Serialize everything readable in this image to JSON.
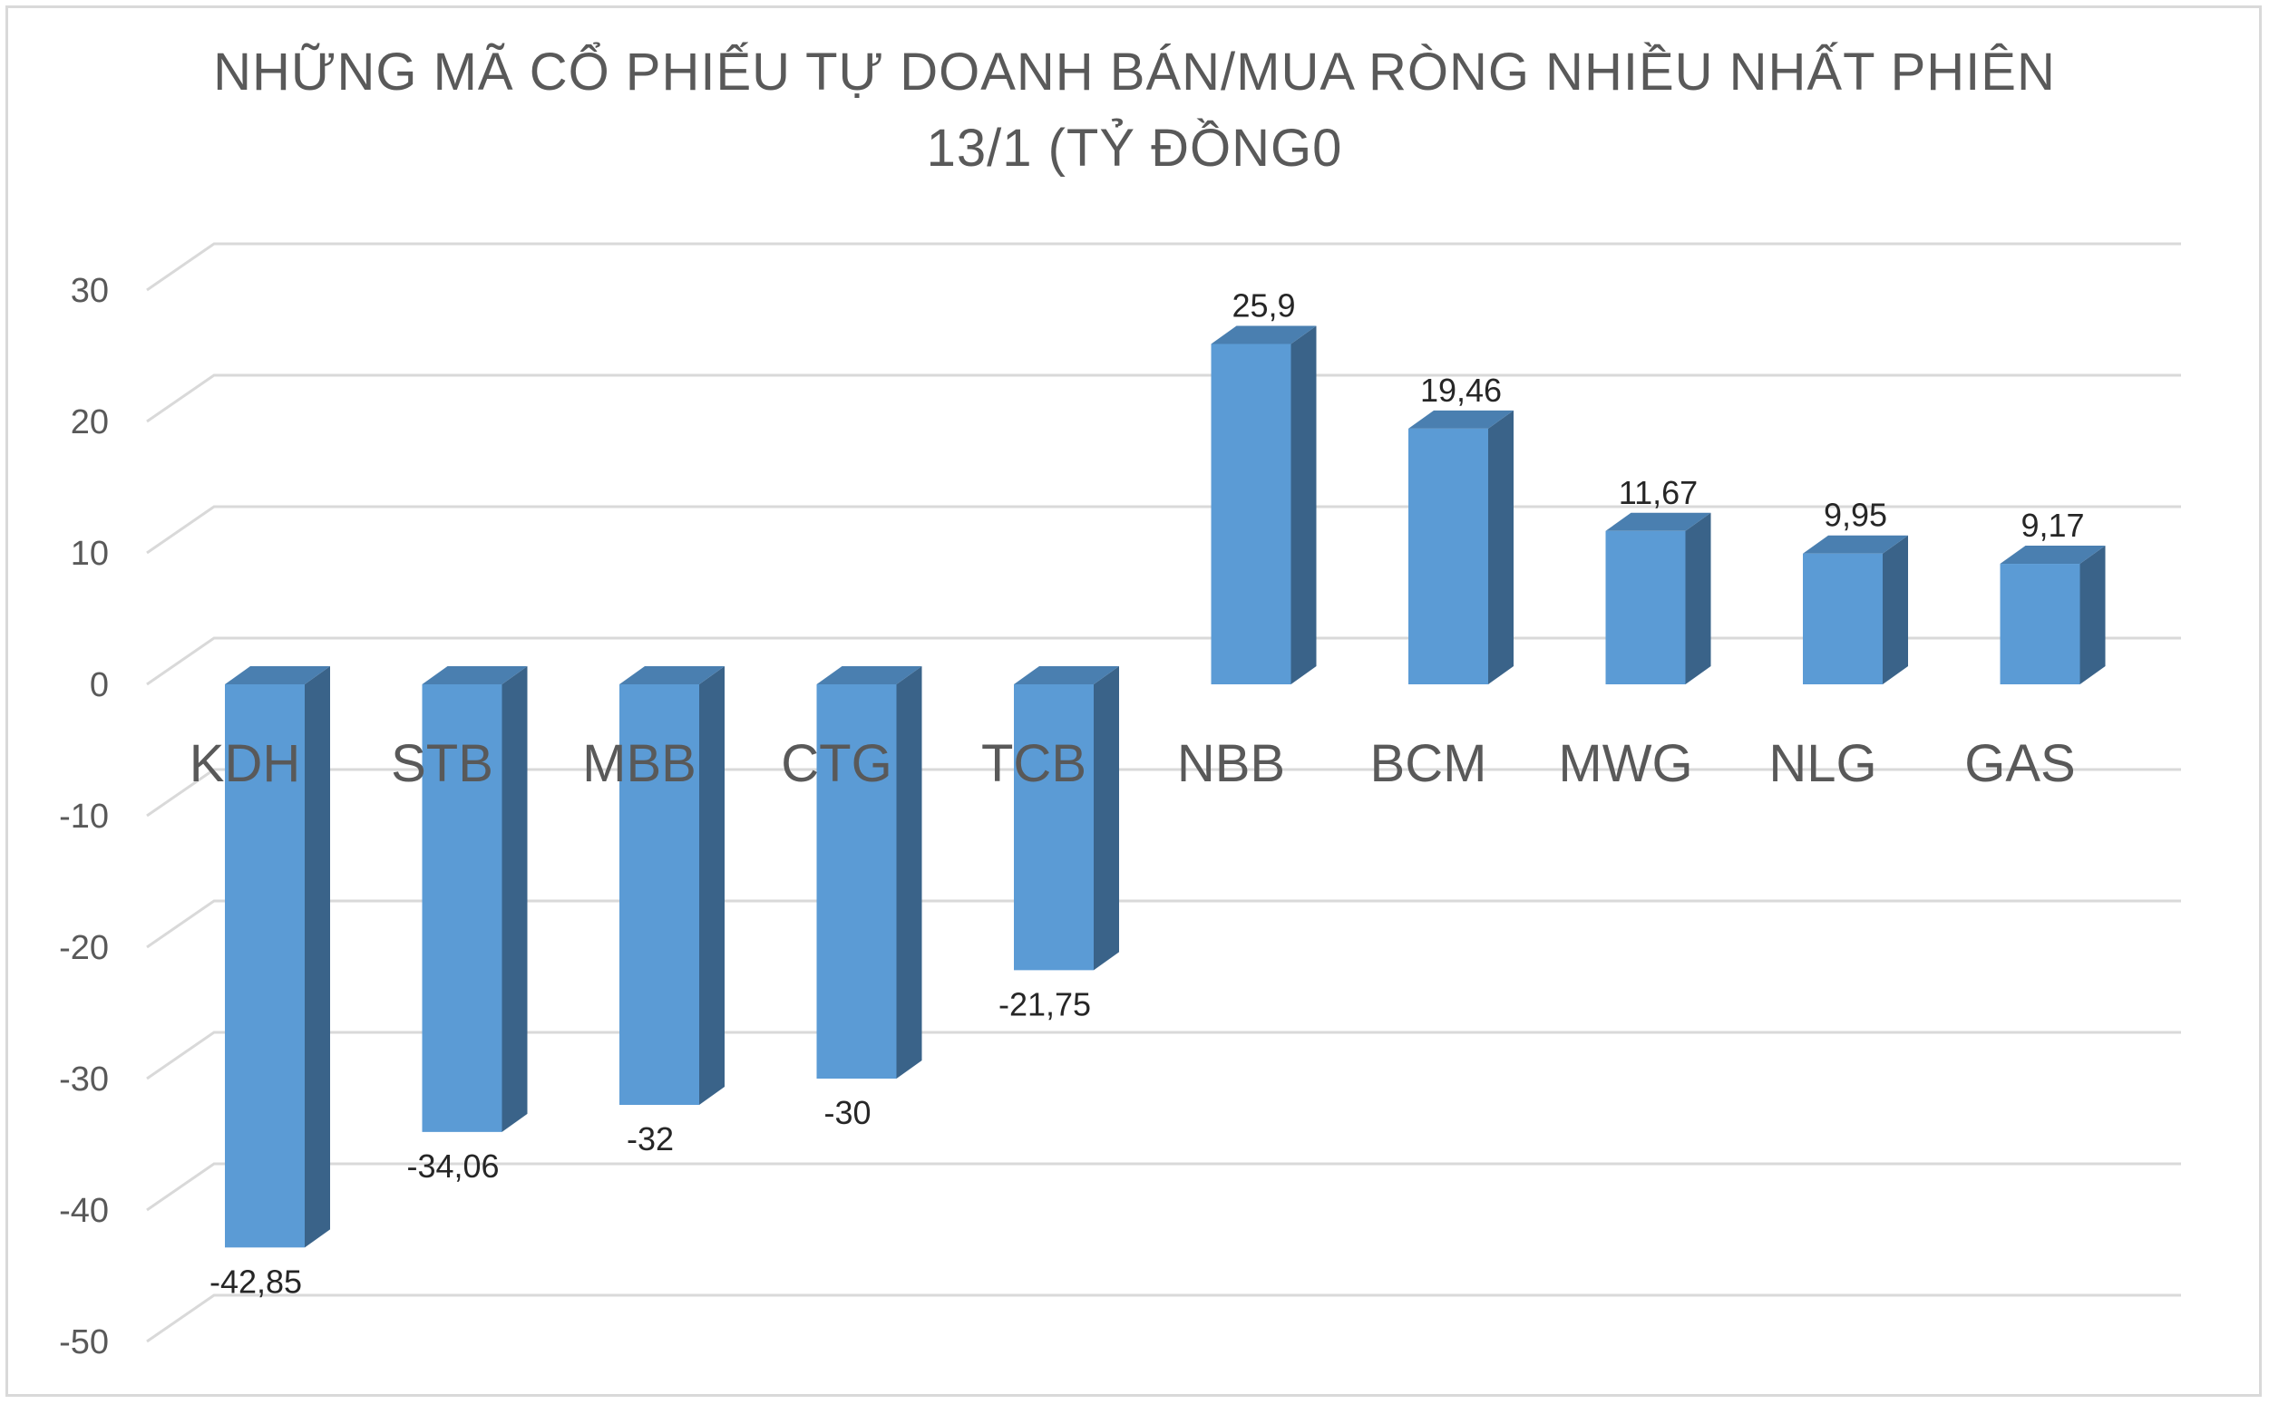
{
  "chart_data": {
    "type": "bar",
    "title_lines": [
      "NHỮNG MÃ CỔ PHIẾU TỰ DOANH BÁN/MUA RÒNG NHIỀU NHẤT PHIÊN",
      "13/1 (TỶ ĐỒNG0"
    ],
    "categories": [
      "KDH",
      "STB",
      "MBB",
      "CTG",
      "TCB",
      "NBB",
      "BCM",
      "MWG",
      "NLG",
      "GAS"
    ],
    "values": [
      -42.85,
      -34.06,
      -32,
      -30,
      -21.75,
      25.9,
      19.46,
      11.67,
      9.95,
      9.17
    ],
    "data_labels": [
      "-42,85",
      "-34,06",
      "-32",
      "-30",
      "-21,75",
      "25,9",
      "19,46",
      "11,67",
      "9,95",
      "9,17"
    ],
    "ylim": [
      -50,
      30
    ],
    "y_ticks": [
      30,
      20,
      10,
      0,
      -10,
      -20,
      -30,
      -40,
      -50
    ],
    "xlabel": "",
    "ylabel": "",
    "grid": true,
    "legend": "none",
    "style": "3d-column",
    "colors": {
      "bar_front": "#5b9bd5",
      "bar_side": "#3a6389",
      "bar_top": "#4a7fb0",
      "grid": "#d9d9d9",
      "text": "#595959"
    }
  }
}
